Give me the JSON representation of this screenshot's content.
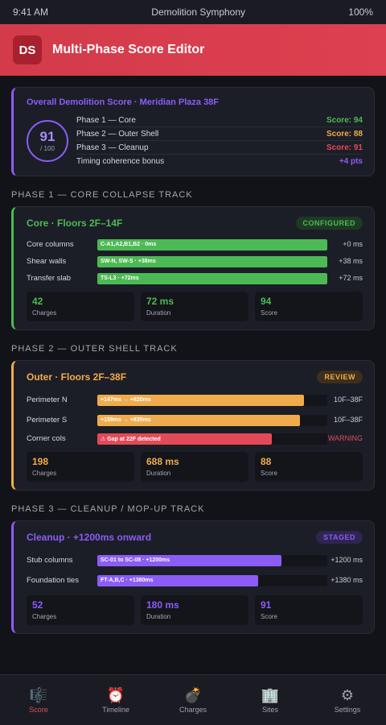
{
  "status_bar": {
    "time": "9:41 AM",
    "title": "Demolition Symphony",
    "battery": "100%"
  },
  "app": {
    "logo": "DS",
    "title": "Multi-Phase Score Editor"
  },
  "overall": {
    "title": "Overall Demolition Score · Meridian Plaza 38F",
    "score": "91",
    "max": "/ 100",
    "rows": [
      {
        "label": "Phase 1 — Core",
        "value": "Score: 94",
        "color": "#4cba54"
      },
      {
        "label": "Phase 2 — Outer Shell",
        "value": "Score: 88",
        "color": "#f0ac4c"
      },
      {
        "label": "Phase 3 — Cleanup",
        "value": "Score: 91",
        "color": "#e24a58"
      },
      {
        "label": "Timing coherence bonus",
        "value": "+4 pts",
        "color": "#8b5cf6"
      }
    ]
  },
  "phases": [
    {
      "section": "PHASE 1 — CORE COLLAPSE TRACK",
      "title": "Core · Floors 2F–14F",
      "badge": "CONFIGURED",
      "accent": "#4cba54",
      "badge_bg": "#1f3a24",
      "tracks": [
        {
          "label": "Core columns",
          "bar": "C-A1,A2,B1,B2 · 0ms",
          "offset": "+0 ms",
          "fill": 1.0,
          "color": "#4cba54"
        },
        {
          "label": "Shear walls",
          "bar": "SW-N, SW-S · +38ms",
          "offset": "+38 ms",
          "fill": 1.0,
          "color": "#4cba54"
        },
        {
          "label": "Transfer slab",
          "bar": "TS-L3 · +72ms",
          "offset": "+72 ms",
          "fill": 1.0,
          "color": "#4cba54"
        }
      ],
      "stats": [
        {
          "value": "42",
          "label": "Charges"
        },
        {
          "value": "72 ms",
          "label": "Duration"
        },
        {
          "value": "94",
          "label": "Score"
        }
      ]
    },
    {
      "section": "PHASE 2 — OUTER SHELL TRACK",
      "title": "Outer · Floors 2F–38F",
      "badge": "REVIEW",
      "accent": "#f0ac4c",
      "badge_bg": "#3d2f1c",
      "tracks": [
        {
          "label": "Perimeter N",
          "bar": "+147ms → +820ms",
          "offset": "10F–38F",
          "fill": 0.9,
          "color": "#f0ac4c",
          "tall": true
        },
        {
          "label": "Perimeter S",
          "bar": "+159ms → +835ms",
          "offset": "10F–38F",
          "fill": 0.88,
          "color": "#f0ac4c",
          "tall": true
        },
        {
          "label": "Corner cols",
          "bar": "⚠ Gap at 22F detected",
          "offset": "WARNING",
          "fill": 0.76,
          "color": "#e24a58",
          "offset_color": "#e24a58"
        }
      ],
      "stats": [
        {
          "value": "198",
          "label": "Charges"
        },
        {
          "value": "688 ms",
          "label": "Duration"
        },
        {
          "value": "88",
          "label": "Score"
        }
      ]
    },
    {
      "section": "PHASE 3 — CLEANUP / MOP-UP TRACK",
      "title": "Cleanup · +1200ms onward",
      "badge": "STAGED",
      "accent": "#8b5cf6",
      "badge_bg": "#2e2550",
      "tracks": [
        {
          "label": "Stub columns",
          "bar": "SC-01 to SC-08 · +1200ms",
          "offset": "+1200 ms",
          "fill": 0.8,
          "color": "#8b5cf6",
          "tall": true
        },
        {
          "label": "Foundation ties",
          "bar": "FT-A,B,C · +1380ms",
          "offset": "+1380 ms",
          "fill": 0.7,
          "color": "#8b5cf6",
          "tall": true
        }
      ],
      "stats": [
        {
          "value": "52",
          "label": "Charges"
        },
        {
          "value": "180 ms",
          "label": "Duration"
        },
        {
          "value": "91",
          "label": "Score"
        }
      ]
    }
  ],
  "tabs": [
    {
      "name": "score",
      "label": "Score",
      "icon": "🎼",
      "active": true
    },
    {
      "name": "timeline",
      "label": "Timeline",
      "icon": "⏰",
      "active": false
    },
    {
      "name": "charges",
      "label": "Charges",
      "icon": "💣",
      "active": false
    },
    {
      "name": "sites",
      "label": "Sites",
      "icon": "🏢",
      "active": false
    },
    {
      "name": "settings",
      "label": "Settings",
      "icon": "⚙",
      "active": false
    }
  ]
}
